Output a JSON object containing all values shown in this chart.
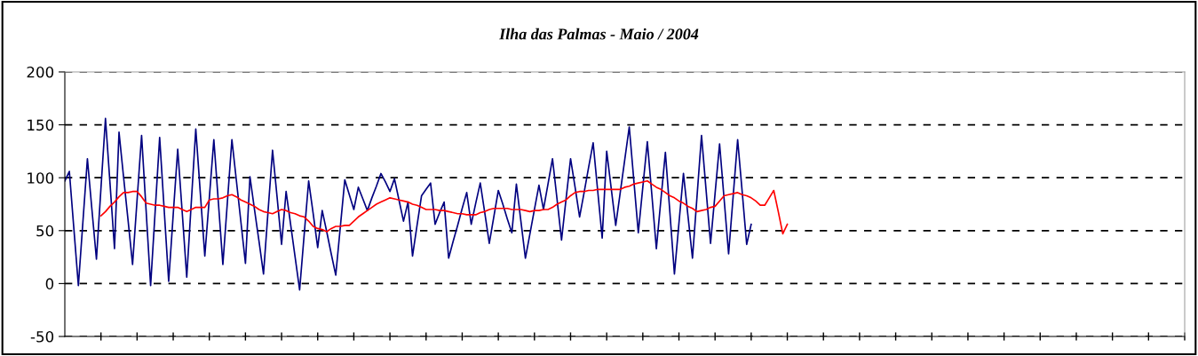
{
  "chart_data": {
    "type": "line",
    "title": "Ilha das Palmas - Maio / 2004",
    "categories": [
      null,
      null,
      null,
      null,
      null,
      null,
      null,
      null,
      null,
      null,
      null,
      null,
      null,
      null,
      null,
      null,
      null,
      null,
      null,
      null,
      null,
      null,
      null,
      null,
      null,
      null,
      null,
      null,
      null,
      null,
      null,
      null,
      null,
      null,
      null,
      null,
      null,
      null,
      null,
      null,
      null,
      null,
      null,
      null,
      null,
      null,
      null,
      null,
      null,
      null,
      null,
      null,
      null,
      null,
      null,
      null,
      null,
      null,
      null,
      null,
      null,
      null,
      null,
      null,
      null,
      null,
      null,
      null,
      null,
      null,
      null,
      null,
      null,
      null,
      null,
      null,
      null,
      null,
      null,
      null,
      null,
      null,
      null,
      null,
      null,
      null,
      null,
      null,
      null,
      null,
      null,
      null,
      null,
      null,
      null,
      null,
      null,
      null,
      null,
      null,
      null,
      null,
      null,
      null,
      null,
      null,
      null,
      null,
      null,
      null,
      null,
      null,
      null,
      null,
      null,
      null,
      null,
      null,
      null,
      null,
      null,
      null,
      null,
      null,
      null,
      null,
      null,
      null,
      null,
      null,
      null,
      null,
      null,
      null,
      null,
      null,
      null,
      null,
      null,
      null,
      null,
      null,
      null,
      null,
      null,
      null,
      null,
      null,
      null,
      null,
      null,
      null,
      null,
      null,
      null,
      null,
      null,
      null,
      null,
      null,
      null,
      null,
      null,
      null,
      null,
      null,
      null,
      null,
      null,
      null,
      null,
      null,
      null,
      null,
      null,
      null,
      null,
      null,
      null,
      null,
      null,
      null,
      null,
      null,
      null,
      null,
      null,
      null,
      null,
      null,
      null,
      null,
      null,
      null,
      null,
      null,
      null,
      null,
      null,
      null,
      null,
      null,
      null,
      null,
      null,
      null,
      null,
      null,
      null,
      null,
      null,
      null,
      null,
      null,
      null,
      null,
      null,
      null,
      null,
      null,
      null,
      null,
      null,
      null,
      null,
      null,
      null,
      null,
      null,
      null,
      null,
      null,
      null,
      null,
      null,
      null,
      null,
      null,
      null,
      null,
      null,
      null,
      null,
      null,
      null,
      null,
      null,
      null
    ],
    "ylim": [
      -50,
      200
    ],
    "yticks": [
      -50,
      0,
      50,
      100,
      150,
      200
    ],
    "grid": "y",
    "line_style": "solid",
    "marker": "none",
    "tick_labels": "y",
    "series": [
      {
        "color": "#000080",
        "values": [
          97,
          106,
          52,
          -2,
          58,
          118,
          70,
          23,
          90,
          156,
          95,
          33,
          143,
          101,
          60,
          18,
          79,
          140,
          69,
          -2,
          68,
          138,
          70,
          2,
          65,
          127,
          67,
          6,
          76,
          146,
          86,
          26,
          81,
          136,
          77,
          18,
          77,
          136,
          97,
          58,
          19,
          101,
          70,
          40,
          9,
          68,
          126,
          82,
          37,
          87,
          56,
          25,
          -6,
          46,
          97,
          66,
          34,
          69,
          49,
          28,
          8,
          53,
          98,
          84,
          70,
          91,
          80,
          69,
          81,
          92,
          104,
          96,
          87,
          99,
          79,
          59,
          77,
          26,
          55,
          83,
          89,
          95,
          56,
          67,
          77,
          24,
          40,
          55,
          71,
          86,
          56,
          76,
          95,
          67,
          38,
          63,
          88,
          75,
          61,
          48,
          94,
          59,
          24,
          47,
          70,
          93,
          70,
          94,
          118,
          80,
          41,
          80,
          118,
          91,
          63,
          86,
          110,
          133,
          88,
          43,
          125,
          90,
          55,
          86,
          117,
          148,
          98,
          48,
          91,
          134,
          84,
          33,
          79,
          124,
          67,
          9,
          57,
          104,
          64,
          24,
          82,
          140,
          89,
          38,
          85,
          132,
          80,
          28,
          82,
          136,
          87,
          37,
          56,
          null,
          null,
          null,
          null,
          null,
          null,
          null,
          null,
          null,
          null,
          null,
          null,
          null,
          null,
          null,
          null,
          null,
          null,
          null,
          null,
          null,
          null,
          null,
          null,
          null,
          null,
          null,
          null,
          null,
          null,
          null,
          null,
          null,
          null,
          null,
          null,
          null,
          null,
          null,
          null,
          null,
          null,
          null,
          null,
          null,
          null,
          null,
          null,
          null,
          null,
          null,
          null,
          null,
          null,
          null,
          null,
          null,
          null,
          null,
          null,
          null,
          null,
          null,
          null,
          null,
          null,
          null,
          null,
          null,
          null,
          null,
          null,
          null,
          null,
          null,
          null,
          null,
          null,
          null,
          null,
          null,
          null,
          null,
          null,
          null,
          null,
          null,
          null,
          null,
          null,
          null,
          null,
          null,
          null,
          null
        ]
      },
      {
        "color": "#ff0000",
        "values": [
          null,
          null,
          null,
          null,
          null,
          null,
          null,
          null,
          64,
          68,
          73,
          77,
          82,
          86,
          86,
          87,
          87,
          82,
          76,
          75,
          74,
          74,
          73,
          72,
          72,
          72,
          70,
          68,
          70,
          72,
          72,
          72,
          79,
          80,
          80,
          81,
          83,
          84,
          82,
          79,
          77,
          75,
          73,
          70,
          68,
          67,
          66,
          68,
          70,
          69,
          67,
          66,
          64,
          63,
          59,
          54,
          52,
          51,
          49,
          52,
          54,
          54,
          55,
          55,
          59,
          63,
          66,
          69,
          72,
          75,
          77,
          79,
          81,
          80,
          79,
          78,
          77,
          75,
          74,
          72,
          70,
          70,
          70,
          69,
          69,
          68,
          67,
          66,
          66,
          65,
          65,
          65,
          67,
          68,
          70,
          71,
          71,
          71,
          71,
          70,
          70,
          70,
          69,
          68,
          69,
          69,
          70,
          70,
          72,
          75,
          77,
          79,
          83,
          86,
          87,
          87,
          88,
          88,
          89,
          89,
          89,
          89,
          89,
          89,
          91,
          92,
          94,
          95,
          96,
          97,
          94,
          91,
          89,
          86,
          83,
          81,
          78,
          76,
          73,
          71,
          68,
          69,
          70,
          72,
          73,
          78,
          83,
          84,
          85,
          86,
          84,
          83,
          81,
          78,
          74,
          74,
          81,
          88,
          68,
          47,
          56,
          null,
          null,
          null,
          null,
          null,
          null,
          null,
          null,
          null,
          null,
          null,
          null,
          null,
          null,
          null,
          null,
          null,
          null,
          null,
          null,
          null,
          null,
          null,
          null,
          null,
          null,
          null,
          null,
          null,
          null,
          null,
          null,
          null,
          null,
          null,
          null,
          null,
          null,
          null,
          null,
          null,
          null,
          null,
          null,
          null,
          null,
          null,
          null,
          null,
          null,
          null,
          null,
          null,
          null,
          null,
          null,
          null,
          null,
          null,
          null,
          null,
          null,
          null,
          null,
          null,
          null,
          null,
          null,
          null,
          null,
          null,
          null,
          null,
          null,
          null,
          null,
          null,
          null,
          null,
          null,
          null,
          null,
          null,
          null,
          null,
          null,
          null
        ]
      }
    ]
  }
}
